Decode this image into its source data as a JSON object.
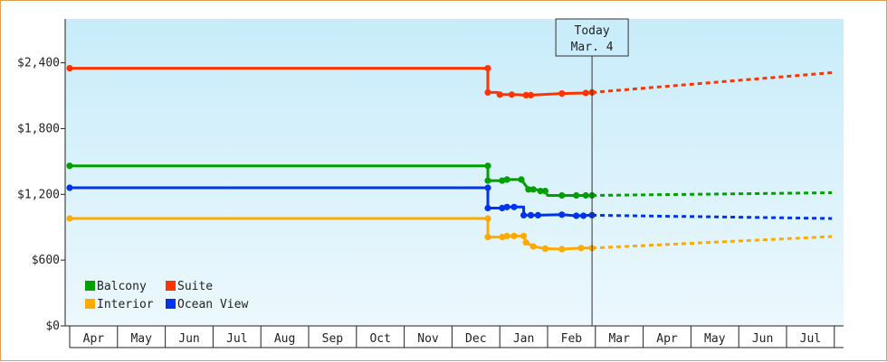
{
  "chart_data": {
    "type": "line",
    "title": "",
    "xlabel": "",
    "ylabel": "",
    "y_ticks": [
      "$0",
      "$600",
      "$1,200",
      "$1,800",
      "$2,400"
    ],
    "y_tick_values": [
      0,
      600,
      1200,
      1800,
      2400
    ],
    "ylim": [
      0,
      2800
    ],
    "months": [
      "Apr",
      "May",
      "Jun",
      "Jul",
      "Aug",
      "Sep",
      "Oct",
      "Nov",
      "Dec",
      "Jan",
      "Feb",
      "Mar",
      "Apr",
      "May",
      "Jun",
      "Jul"
    ],
    "xlim": [
      "Apr",
      "Aug (next year)"
    ],
    "grid": false,
    "legend": {
      "placement": "bottom-left",
      "entries": [
        {
          "name": "Balcony",
          "color": "#00a000"
        },
        {
          "name": "Suite",
          "color": "#ff3300"
        },
        {
          "name": "Interior",
          "color": "#ffaa00"
        },
        {
          "name": "Ocean View",
          "color": "#0033ee"
        }
      ]
    },
    "today": {
      "line1": "Today",
      "line2": "Mar. 4",
      "x": 10.93
    },
    "series": [
      {
        "name": "Suite",
        "color": "#ff3300",
        "actual": [
          [
            0,
            2350
          ],
          [
            8.75,
            2350
          ],
          [
            8.75,
            2130
          ],
          [
            8.95,
            2130
          ],
          [
            9.0,
            2110
          ],
          [
            9.1,
            2110
          ],
          [
            9.3,
            2110
          ],
          [
            9.55,
            2105
          ],
          [
            9.65,
            2105
          ],
          [
            10.3,
            2120
          ],
          [
            10.8,
            2125
          ],
          [
            10.93,
            2130
          ]
        ],
        "markers": [
          [
            0,
            2350
          ],
          [
            8.75,
            2350
          ],
          [
            8.75,
            2130
          ],
          [
            9.0,
            2110
          ],
          [
            9.25,
            2110
          ],
          [
            9.55,
            2105
          ],
          [
            9.65,
            2105
          ],
          [
            10.3,
            2120
          ],
          [
            10.8,
            2125
          ],
          [
            10.93,
            2130
          ]
        ],
        "forecast": [
          [
            10.93,
            2130
          ],
          [
            15.95,
            2310
          ]
        ]
      },
      {
        "name": "Balcony",
        "color": "#00a000",
        "actual": [
          [
            0,
            1460
          ],
          [
            8.75,
            1460
          ],
          [
            8.75,
            1325
          ],
          [
            9.0,
            1325
          ],
          [
            9.15,
            1335
          ],
          [
            9.45,
            1335
          ],
          [
            9.6,
            1245
          ],
          [
            9.75,
            1245
          ],
          [
            9.85,
            1230
          ],
          [
            9.95,
            1230
          ],
          [
            10.0,
            1190
          ],
          [
            10.3,
            1190
          ],
          [
            10.6,
            1190
          ],
          [
            10.93,
            1190
          ]
        ],
        "markers": [
          [
            0,
            1460
          ],
          [
            8.75,
            1460
          ],
          [
            8.75,
            1325
          ],
          [
            9.05,
            1325
          ],
          [
            9.15,
            1335
          ],
          [
            9.45,
            1335
          ],
          [
            9.6,
            1245
          ],
          [
            9.7,
            1245
          ],
          [
            9.85,
            1230
          ],
          [
            9.95,
            1230
          ],
          [
            10.3,
            1190
          ],
          [
            10.6,
            1190
          ],
          [
            10.8,
            1190
          ],
          [
            10.93,
            1190
          ]
        ],
        "forecast": [
          [
            10.93,
            1190
          ],
          [
            15.95,
            1215
          ]
        ]
      },
      {
        "name": "Ocean View",
        "color": "#0033ee",
        "actual": [
          [
            0,
            1260
          ],
          [
            8.75,
            1260
          ],
          [
            8.75,
            1075
          ],
          [
            9.0,
            1075
          ],
          [
            9.15,
            1085
          ],
          [
            9.5,
            1085
          ],
          [
            9.5,
            1010
          ],
          [
            9.65,
            1010
          ],
          [
            9.8,
            1010
          ],
          [
            10.3,
            1015
          ],
          [
            10.6,
            1005
          ],
          [
            10.93,
            1010
          ]
        ],
        "markers": [
          [
            0,
            1260
          ],
          [
            8.75,
            1260
          ],
          [
            8.75,
            1075
          ],
          [
            9.05,
            1075
          ],
          [
            9.15,
            1085
          ],
          [
            9.3,
            1085
          ],
          [
            9.5,
            1010
          ],
          [
            9.65,
            1010
          ],
          [
            9.8,
            1010
          ],
          [
            10.3,
            1015
          ],
          [
            10.6,
            1005
          ],
          [
            10.75,
            1005
          ],
          [
            10.93,
            1010
          ]
        ],
        "forecast": [
          [
            10.93,
            1010
          ],
          [
            15.95,
            980
          ]
        ]
      },
      {
        "name": "Interior",
        "color": "#ffaa00",
        "actual": [
          [
            0,
            980
          ],
          [
            8.75,
            980
          ],
          [
            8.75,
            810
          ],
          [
            9.0,
            810
          ],
          [
            9.15,
            820
          ],
          [
            9.5,
            820
          ],
          [
            9.55,
            760
          ],
          [
            9.7,
            725
          ],
          [
            9.95,
            705
          ],
          [
            10.3,
            700
          ],
          [
            10.7,
            710
          ],
          [
            10.93,
            710
          ]
        ],
        "markers": [
          [
            0,
            980
          ],
          [
            8.75,
            980
          ],
          [
            8.75,
            810
          ],
          [
            9.05,
            810
          ],
          [
            9.15,
            820
          ],
          [
            9.3,
            820
          ],
          [
            9.5,
            820
          ],
          [
            9.55,
            760
          ],
          [
            9.7,
            725
          ],
          [
            9.95,
            705
          ],
          [
            10.3,
            700
          ],
          [
            10.7,
            710
          ],
          [
            10.93,
            710
          ]
        ],
        "forecast": [
          [
            10.93,
            710
          ],
          [
            15.95,
            815
          ]
        ]
      }
    ]
  }
}
